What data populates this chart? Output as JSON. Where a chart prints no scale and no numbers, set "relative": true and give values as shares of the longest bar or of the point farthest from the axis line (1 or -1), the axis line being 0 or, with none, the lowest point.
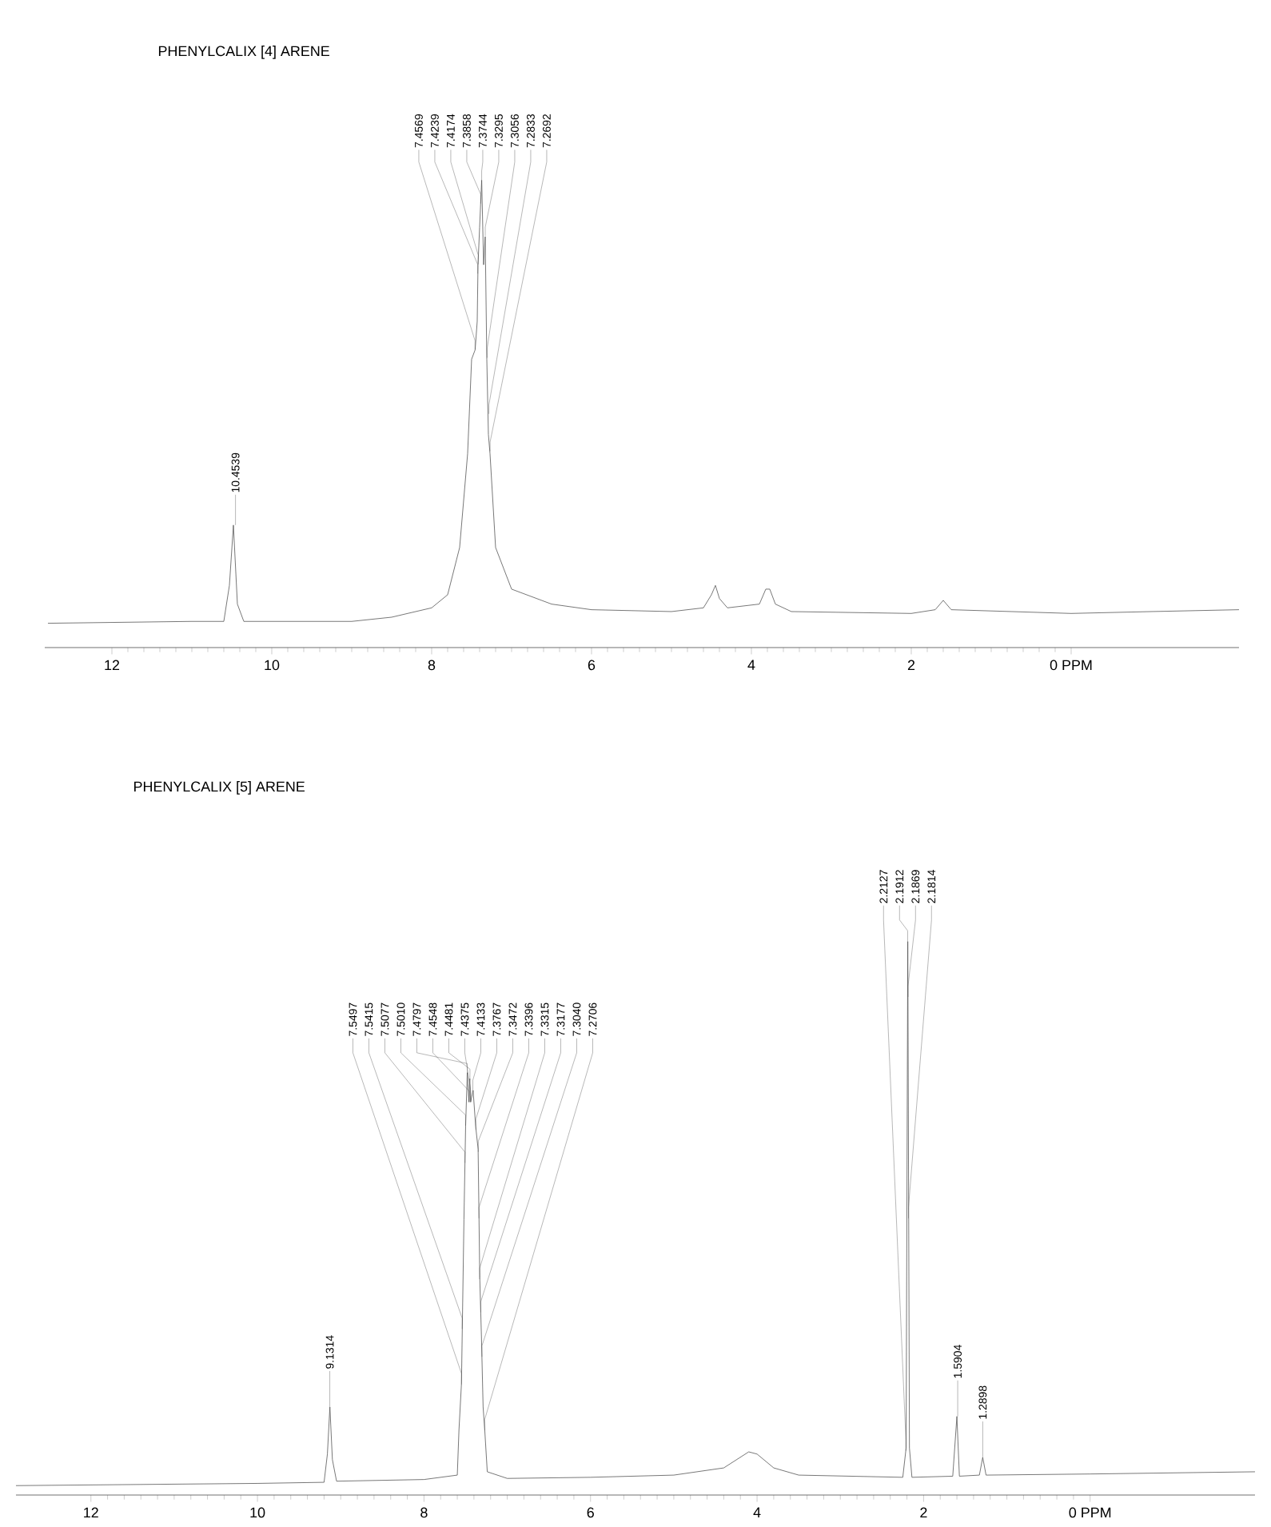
{
  "chart_data": [
    {
      "type": "line",
      "title": "PHENYLCALIX [4] ARENE",
      "relative": true,
      "color": "#555555",
      "line_style": "solid",
      "xlim": [
        12.84,
        -2.1
      ],
      "xticks": [
        12,
        10,
        8,
        6,
        4,
        2,
        {
          "value": 0,
          "label": "0 PPM"
        }
      ],
      "x": [
        12.8,
        11,
        10.6,
        10.53,
        10.48,
        10.43,
        10.35,
        9,
        8.5,
        8,
        7.8,
        7.65,
        7.55,
        7.5,
        7.456,
        7.43,
        7.42,
        7.4,
        7.374,
        7.35,
        7.33,
        7.31,
        7.29,
        7.27,
        7.2,
        7.0,
        6.5,
        6,
        5,
        4.6,
        4.5,
        4.45,
        4.4,
        4.3,
        3.9,
        3.82,
        3.77,
        3.7,
        3.5,
        2,
        1.7,
        1.6,
        1.5,
        0,
        -1,
        -2.1
      ],
      "values": [
        0.052,
        0.056,
        0.056,
        0.133,
        0.262,
        0.093,
        0.056,
        0.056,
        0.065,
        0.085,
        0.113,
        0.214,
        0.415,
        0.617,
        0.637,
        0.698,
        0.819,
        0.899,
        1.0,
        0.819,
        0.879,
        0.617,
        0.456,
        0.415,
        0.214,
        0.125,
        0.093,
        0.081,
        0.077,
        0.085,
        0.113,
        0.133,
        0.105,
        0.085,
        0.093,
        0.125,
        0.125,
        0.093,
        0.077,
        0.073,
        0.081,
        0.101,
        0.081,
        0.073,
        0.077,
        0.081
      ],
      "annotations": [
        {
          "text": "10.4539",
          "x": 10.4539,
          "y": 0.262
        },
        {
          "text": "7.4569",
          "x": 7.4569,
          "y": 0.637
        },
        {
          "text": "7.4239",
          "x": 7.4239,
          "y": 0.8
        },
        {
          "text": "7.4174",
          "x": 7.4174,
          "y": 0.82
        },
        {
          "text": "7.3858",
          "x": 7.3858,
          "y": 0.95
        },
        {
          "text": "7.3744",
          "x": 7.3744,
          "y": 1.0
        },
        {
          "text": "7.3295",
          "x": 7.3295,
          "y": 0.88
        },
        {
          "text": "7.3056",
          "x": 7.3056,
          "y": 0.62
        },
        {
          "text": "7.2833",
          "x": 7.2833,
          "y": 0.5
        },
        {
          "text": "7.2692",
          "x": 7.2692,
          "y": 0.42
        }
      ]
    },
    {
      "type": "line",
      "title": "PHENYLCALIX [5] ARENE",
      "relative": true,
      "color": "#555555",
      "line_style": "solid",
      "xlim": [
        12.9,
        -1.98
      ],
      "xticks": [
        12,
        10,
        8,
        6,
        4,
        2,
        {
          "value": 0,
          "label": "0 PPM"
        }
      ],
      "x": [
        12.9,
        10,
        9.2,
        9.16,
        9.13,
        9.1,
        9.05,
        8,
        7.6,
        7.58,
        7.55,
        7.52,
        7.5,
        7.48,
        7.46,
        7.45,
        7.44,
        7.41,
        7.38,
        7.35,
        7.33,
        7.31,
        7.29,
        7.27,
        7.24,
        7.0,
        6,
        5,
        4.4,
        4.1,
        4.0,
        3.8,
        3.5,
        2.25,
        2.21,
        2.19,
        2.17,
        2.14,
        1.65,
        1.6,
        1.57,
        1.33,
        1.29,
        1.25,
        0,
        -1.98
      ],
      "values": [
        0.017,
        0.021,
        0.023,
        0.074,
        0.159,
        0.064,
        0.025,
        0.028,
        0.036,
        0.117,
        0.201,
        0.498,
        0.667,
        0.763,
        0.71,
        0.752,
        0.71,
        0.731,
        0.667,
        0.625,
        0.392,
        0.286,
        0.159,
        0.117,
        0.042,
        0.03,
        0.032,
        0.036,
        0.049,
        0.078,
        0.074,
        0.049,
        0.036,
        0.032,
        0.085,
        1.0,
        0.085,
        0.032,
        0.034,
        0.142,
        0.034,
        0.036,
        0.068,
        0.036,
        0.038,
        0.042
      ],
      "annotations": [
        {
          "text": "9.1314",
          "x": 9.1314,
          "y": 0.159
        },
        {
          "text": "7.5497",
          "x": 7.5497,
          "y": 0.2
        },
        {
          "text": "7.5415",
          "x": 7.5415,
          "y": 0.3
        },
        {
          "text": "7.5077",
          "x": 7.5077,
          "y": 0.6
        },
        {
          "text": "7.5010",
          "x": 7.501,
          "y": 0.667
        },
        {
          "text": "7.4797",
          "x": 7.4797,
          "y": 0.76
        },
        {
          "text": "7.4548",
          "x": 7.4548,
          "y": 0.71
        },
        {
          "text": "7.4481",
          "x": 7.4481,
          "y": 0.75
        },
        {
          "text": "7.4375",
          "x": 7.4375,
          "y": 0.71
        },
        {
          "text": "7.4133",
          "x": 7.4133,
          "y": 0.73
        },
        {
          "text": "7.3767",
          "x": 7.3767,
          "y": 0.66
        },
        {
          "text": "7.3472",
          "x": 7.3472,
          "y": 0.62
        },
        {
          "text": "7.3396",
          "x": 7.3396,
          "y": 0.5
        },
        {
          "text": "7.3315",
          "x": 7.3315,
          "y": 0.39
        },
        {
          "text": "7.3177",
          "x": 7.3177,
          "y": 0.33
        },
        {
          "text": "7.3040",
          "x": 7.304,
          "y": 0.25
        },
        {
          "text": "7.2706",
          "x": 7.2706,
          "y": 0.117
        },
        {
          "text": "2.2127",
          "x": 2.2127,
          "y": 0.08
        },
        {
          "text": "2.1912",
          "x": 2.1912,
          "y": 1.0
        },
        {
          "text": "2.1869",
          "x": 2.1869,
          "y": 0.9
        },
        {
          "text": "2.1814",
          "x": 2.1814,
          "y": 0.5
        },
        {
          "text": "1.5904",
          "x": 1.5904,
          "y": 0.142
        },
        {
          "text": "1.2898",
          "x": 1.2898,
          "y": 0.068
        }
      ]
    }
  ]
}
